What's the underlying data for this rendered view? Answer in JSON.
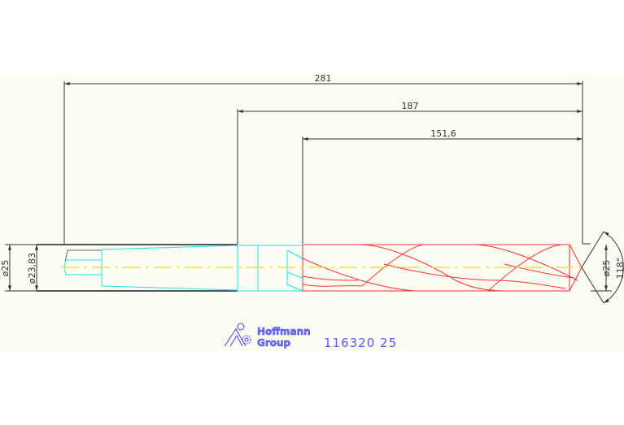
{
  "drawing": {
    "dimensions": {
      "overall_length": "281",
      "shank_to_tip": "187",
      "flute_length": "151,6",
      "shank_diameter": "ø25",
      "taper_diameter": "ø23,83",
      "drill_diameter": "ø25",
      "point_angle": "118°"
    },
    "logo": {
      "line1": "Hoffmann",
      "line2": "Group"
    },
    "part_number": "116320 25",
    "colors": {
      "background": "#fcfdf3",
      "dimension": "#333333",
      "shank": "#555555",
      "taper": "#22e0e8",
      "flutes": "#ff3030",
      "centerline_a": "#f4e040",
      "centerline_b": "#999999",
      "brand": "#5a5aff"
    }
  }
}
